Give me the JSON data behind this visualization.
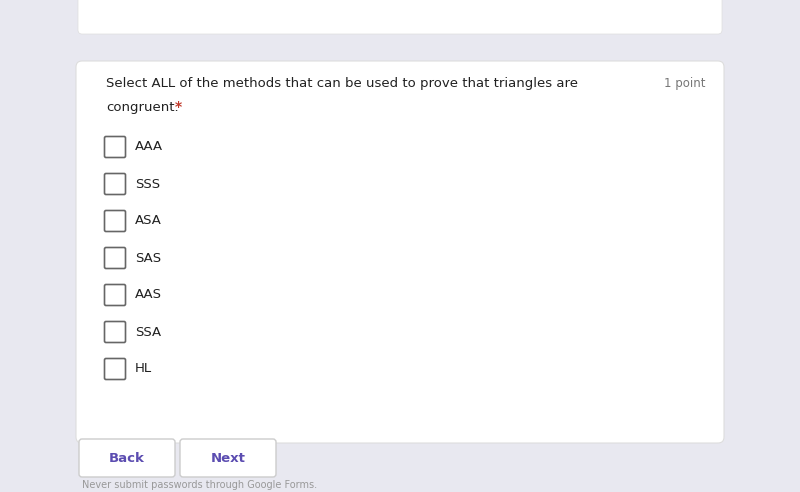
{
  "bg_color": "#e8e8f0",
  "card_color": "#ffffff",
  "question_line1": "Select ALL of the methods that can be used to prove that triangles are",
  "question_line2": "congruent.",
  "required_star": "*",
  "points_text": "1 point",
  "options": [
    "AAA",
    "SSS",
    "ASA",
    "SAS",
    "AAS",
    "SSA",
    "HL"
  ],
  "label_color": "#212121",
  "star_color": "#c0392b",
  "points_color": "#777777",
  "checkbox_edge_color": "#666666",
  "checkbox_fill_color": "#ffffff",
  "button_back_text": "Back",
  "button_next_text": "Next",
  "button_color": "#ffffff",
  "button_text_color": "#5c4db1",
  "button_border_color": "#cccccc",
  "footer_text": "Never submit passwords through Google Forms.",
  "footer_color": "#999999",
  "top_strip_color": "#ffffff"
}
